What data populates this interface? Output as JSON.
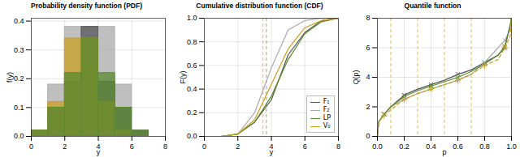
{
  "chart_data": [
    {
      "type": "histogram",
      "title": "Probability density function (PDF)",
      "xlabel": "y",
      "ylabel": "f(y)",
      "bins": [
        0,
        1,
        2,
        3,
        4,
        5,
        6,
        7,
        8
      ],
      "series": [
        {
          "name": "F₂",
          "color": "#aaaaaa",
          "values": [
            0.02,
            0.18,
            0.38,
            0.38,
            0.38,
            0.18,
            0.02,
            0.0
          ]
        },
        {
          "name": "F₁",
          "color": "#555555",
          "values": [
            0.02,
            0.1,
            0.19,
            0.38,
            0.19,
            0.1,
            0.02,
            0.0
          ]
        },
        {
          "name": "V₀",
          "color": "#c8a020",
          "values": [
            0.02,
            0.12,
            0.34,
            0.34,
            0.12,
            0.02,
            0.0,
            0.0
          ]
        },
        {
          "name": "LP",
          "color": "#5a8a30",
          "values": [
            0.02,
            0.1,
            0.22,
            0.34,
            0.22,
            0.1,
            0.02,
            0.0
          ]
        }
      ],
      "xlim": [
        0,
        8
      ],
      "xticks": [
        0,
        2,
        4,
        6,
        8
      ],
      "ylim": [
        0,
        0.41
      ],
      "yticks": [
        {
          "value": 0,
          "label": "0.0"
        },
        0.1,
        0.2,
        0.3,
        0.4
      ],
      "grid": true
    },
    {
      "type": "line",
      "title": "Cumulative distribution function (CDF)",
      "xlabel": "y",
      "ylabel": "F(y)",
      "x": [
        0,
        1,
        2,
        3,
        4,
        5,
        6,
        7,
        8
      ],
      "series": [
        {
          "name": "F₁",
          "color": "#555555",
          "values": [
            0,
            0,
            0.02,
            0.12,
            0.31,
            0.69,
            0.88,
            0.98,
            1.0
          ]
        },
        {
          "name": "F₂",
          "color": "#aaaaaa",
          "values": [
            0,
            0,
            0.02,
            0.2,
            0.58,
            0.9,
            0.98,
            1.0,
            1.0
          ]
        },
        {
          "name": "LP",
          "color": "#5a8a30",
          "values": [
            0,
            0,
            0.02,
            0.12,
            0.34,
            0.65,
            0.87,
            0.97,
            1.0
          ]
        },
        {
          "name": "V₀",
          "color": "#c8a020",
          "values": [
            0,
            0,
            0.02,
            0.14,
            0.44,
            0.74,
            0.92,
            0.98,
            1.0
          ]
        }
      ],
      "vlines": [
        {
          "x": 3.7,
          "color": "#5a8a30",
          "line_style": "dashed"
        },
        {
          "x": 3.5,
          "color": "#c8a020",
          "line_style": "dashed"
        }
      ],
      "xlim": [
        0,
        8
      ],
      "xticks": [
        0,
        2,
        4,
        6,
        8
      ],
      "ylim": [
        0,
        1.0
      ],
      "yticks": [
        {
          "value": 0,
          "label": "0.0"
        },
        0.2,
        0.4,
        0.6,
        0.8,
        {
          "value": 1,
          "label": "1.0"
        }
      ],
      "grid": true,
      "legend": "lower right"
    },
    {
      "type": "line",
      "title": "Quantile function",
      "xlabel": "p",
      "ylabel": "Q(p)",
      "x": [
        0.0,
        0.01,
        0.05,
        0.1,
        0.2,
        0.3,
        0.4,
        0.5,
        0.6,
        0.7,
        0.8,
        0.9,
        0.95,
        0.99,
        1.0
      ],
      "marker_x": [
        0.05,
        0.2,
        0.4,
        0.6,
        0.8,
        0.95
      ],
      "series": [
        {
          "name": "F₁",
          "color": "#555555",
          "line_style": "solid",
          "marker": "x",
          "values": [
            0.0,
            1.0,
            1.5,
            2.0,
            2.8,
            3.2,
            3.5,
            3.8,
            4.2,
            4.5,
            5.0,
            5.5,
            6.0,
            7.5,
            8.0
          ]
        },
        {
          "name": "F₂",
          "color": "#aaaaaa",
          "line_style": "solid",
          "marker": "x",
          "values": [
            0.0,
            1.0,
            1.5,
            2.0,
            2.5,
            2.9,
            3.2,
            3.5,
            3.8,
            4.2,
            5.0,
            6.0,
            6.5,
            7.2,
            8.0
          ]
        },
        {
          "name": "LP",
          "color": "#5a8a30",
          "line_style": "solid",
          "marker": "x",
          "values": [
            0.0,
            1.0,
            1.5,
            2.0,
            2.7,
            3.1,
            3.4,
            3.7,
            4.0,
            4.4,
            4.9,
            5.5,
            6.1,
            7.5,
            8.0
          ]
        },
        {
          "name": "V₀",
          "color": "#c8a020",
          "line_style": "dashed",
          "marker": "plus",
          "values": [
            0.0,
            1.0,
            1.4,
            1.8,
            2.5,
            2.9,
            3.2,
            3.5,
            3.8,
            4.2,
            4.8,
            5.2,
            6.0,
            6.8,
            8.0
          ]
        }
      ],
      "vlines": [
        {
          "x": 0.1,
          "color": "#c8a020",
          "line_style": "dashed"
        },
        {
          "x": 0.3,
          "color": "#c8a020",
          "line_style": "dashed"
        },
        {
          "x": 0.5,
          "color": "#c8a020",
          "line_style": "dashed"
        },
        {
          "x": 0.7,
          "color": "#c8a020",
          "line_style": "dashed"
        }
      ],
      "xlim": [
        0,
        1.0
      ],
      "xticks": [
        {
          "value": 0,
          "label": "0.0"
        },
        0.2,
        0.4,
        0.6,
        0.8,
        {
          "value": 1,
          "label": "1.0"
        }
      ],
      "ylim": [
        0,
        8
      ],
      "yticks": [
        0,
        2,
        4,
        6,
        8
      ],
      "grid": true
    }
  ]
}
